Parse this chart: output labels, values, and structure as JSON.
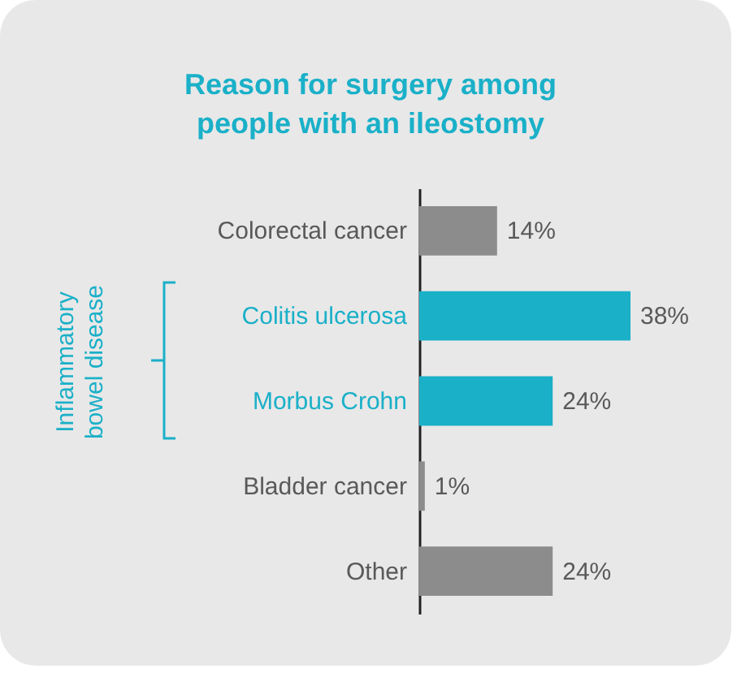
{
  "chart_data": {
    "type": "bar",
    "orientation": "horizontal",
    "title": "Reason for surgery among\npeople with an ileostomy",
    "categories": [
      "Colorectal cancer",
      "Colitis ulcerosa",
      "Morbus Crohn",
      "Bladder cancer",
      "Other"
    ],
    "values": [
      14,
      38,
      24,
      1,
      24
    ],
    "value_labels": [
      "14%",
      "38%",
      "24%",
      "1%",
      "24%"
    ],
    "colors": [
      "#8c8c8c",
      "#1ab0c8",
      "#1ab0c8",
      "#8c8c8c",
      "#8c8c8c"
    ],
    "annotations": [
      "Inflammatory bowel disease"
    ]
  }
}
